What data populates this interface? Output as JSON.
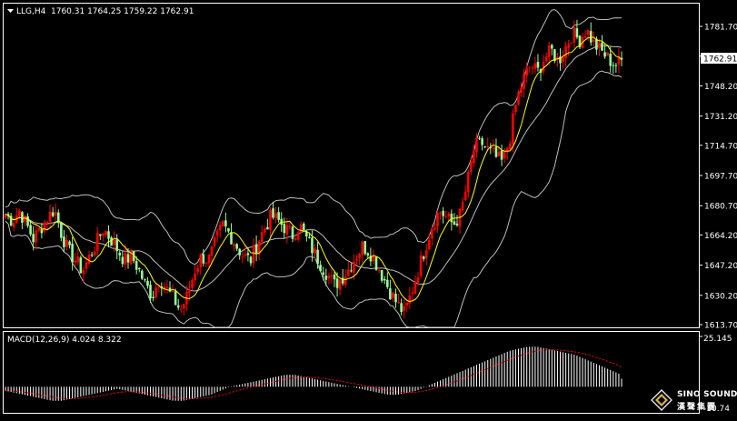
{
  "symbol_header": {
    "symbol": "LLG,H4",
    "ohlc": "1760.31 1764.25 1759.22 1762.91"
  },
  "current_price": "1762.91",
  "price_axis": {
    "ticks": [
      "1781.70",
      "1764.95",
      "1748.20",
      "1731.20",
      "1714.70",
      "1697.70",
      "1680.70",
      "1664.20",
      "1647.20",
      "1630.20",
      "1613.70"
    ]
  },
  "macd_header": {
    "label": "MACD(12,26,9) 4.024 8.322"
  },
  "macd_axis": {
    "top": "25.145",
    "bottom": "-10.74"
  },
  "watermark": {
    "line1": "SINO SOUND",
    "line2": "漢聲集團"
  },
  "colors": {
    "background": "#000000",
    "bull_candle": "#ff0000",
    "bear_candle": "#98fb98",
    "moving_average": "#ffff00",
    "bollinger_bands": "#bdbdbd",
    "macd_histogram": "#ffffff",
    "macd_signal": "#ff0000",
    "axis_text": "#ffffff"
  },
  "chart_data": {
    "type": "candlestick",
    "symbol": "LLG",
    "timeframe": "H4",
    "ylim": [
      1613.7,
      1790
    ],
    "indicators": [
      "Bollinger Bands",
      "Moving Average",
      "MACD(12,26,9)"
    ],
    "close_path": [
      1676,
      1672,
      1678,
      1670,
      1662,
      1668,
      1674,
      1679,
      1665,
      1655,
      1650,
      1644,
      1652,
      1660,
      1668,
      1662,
      1656,
      1650,
      1652,
      1645,
      1636,
      1630,
      1640,
      1634,
      1628,
      1622,
      1630,
      1644,
      1652,
      1650,
      1660,
      1670,
      1665,
      1658,
      1652,
      1650,
      1660,
      1668,
      1675,
      1672,
      1668,
      1664,
      1670,
      1662,
      1655,
      1648,
      1642,
      1636,
      1640,
      1645,
      1652,
      1658,
      1655,
      1648,
      1640,
      1632,
      1625,
      1620,
      1632,
      1645,
      1658,
      1670,
      1678,
      1674,
      1670,
      1676,
      1694,
      1714,
      1716,
      1712,
      1708,
      1705,
      1718,
      1740,
      1752,
      1760,
      1756,
      1764,
      1768,
      1762,
      1770,
      1778,
      1774,
      1780,
      1772,
      1768,
      1764,
      1760,
      1762
    ],
    "macd": {
      "value": 4.024,
      "signal": 8.322,
      "histogram_path": [
        -2,
        -3,
        -4,
        -5,
        -6,
        -7,
        -7,
        -6,
        -5,
        -4,
        -3,
        -2,
        -1,
        -2,
        -3,
        -4,
        -5,
        -6,
        -7,
        -7,
        -6,
        -5,
        -4,
        -2,
        0,
        1,
        2,
        3,
        4,
        5,
        6,
        6,
        5,
        4,
        3,
        2,
        1,
        0,
        -1,
        -2,
        -3,
        -4,
        -4,
        -3,
        -2,
        0,
        2,
        4,
        6,
        8,
        10,
        12,
        14,
        16,
        18,
        19,
        20,
        20,
        19,
        18,
        17,
        16,
        14,
        12,
        10,
        8,
        6
      ],
      "ylim": [
        -10.74,
        25.145
      ]
    }
  }
}
